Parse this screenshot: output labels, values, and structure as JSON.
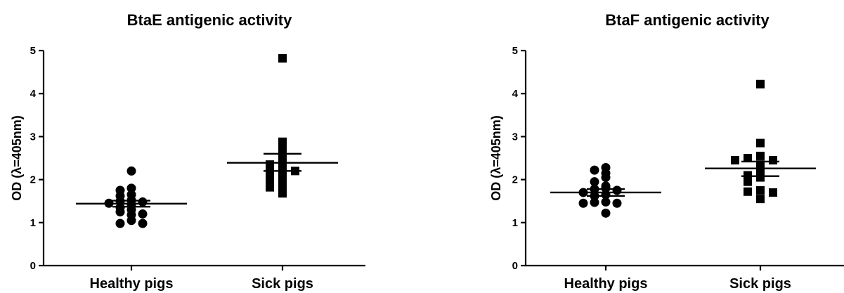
{
  "chart_data": [
    {
      "type": "scatter",
      "title": "BtaE antigenic activity",
      "ylabel": "OD (λ=405nm)",
      "ylim": [
        0,
        5
      ],
      "yticks": [
        "0",
        "1",
        "2",
        "3",
        "4",
        "5"
      ],
      "categories": [
        "Healthy pigs",
        "Sick pigs"
      ],
      "grid": false,
      "series": [
        {
          "marker": "circle",
          "values": [
            2.2,
            1.8,
            1.75,
            1.65,
            1.62,
            1.52,
            1.5,
            1.48,
            1.45,
            1.42,
            1.35,
            1.3,
            1.25,
            1.2,
            1.18,
            1.05,
            0.98,
            0.98
          ],
          "mean": 1.44,
          "sem_low": 1.37,
          "sem_high": 1.51
        },
        {
          "marker": "square",
          "values": [
            4.82,
            2.88,
            2.72,
            2.55,
            2.42,
            2.35,
            2.3,
            2.25,
            2.2,
            2.15,
            2.08,
            2.02,
            1.98,
            1.85,
            1.82,
            1.68
          ],
          "mean": 2.39,
          "sem_low": 2.2,
          "sem_high": 2.6
        }
      ]
    },
    {
      "type": "scatter",
      "title": "BtaF antigenic activity",
      "ylabel": "OD (λ=405nm)",
      "ylim": [
        0,
        5
      ],
      "yticks": [
        "0",
        "1",
        "2",
        "3",
        "4",
        "5"
      ],
      "categories": [
        "Healthy pigs",
        "Sick pigs"
      ],
      "grid": false,
      "series": [
        {
          "marker": "circle",
          "values": [
            2.28,
            2.22,
            2.15,
            2.05,
            1.95,
            1.85,
            1.8,
            1.78,
            1.75,
            1.7,
            1.65,
            1.62,
            1.48,
            1.47,
            1.45,
            1.45,
            1.22
          ],
          "mean": 1.7,
          "sem_low": 1.62,
          "sem_high": 1.78
        },
        {
          "marker": "square",
          "values": [
            4.22,
            2.85,
            2.55,
            2.5,
            2.45,
            2.45,
            2.35,
            2.2,
            2.15,
            2.1,
            2.05,
            1.95,
            1.75,
            1.72,
            1.7,
            1.55
          ],
          "mean": 2.26,
          "sem_low": 2.08,
          "sem_high": 2.42
        }
      ]
    }
  ]
}
